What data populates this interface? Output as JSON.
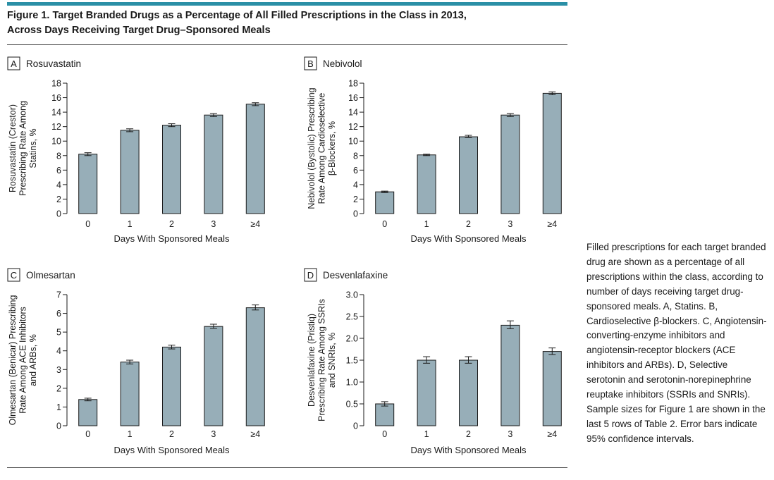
{
  "figure": {
    "title_line1": "Figure 1. Target Branded Drugs as a Percentage of All Filled Prescriptions in the Class in 2013,",
    "title_line2": "Across Days Receiving Target Drug–Sponsored Meals",
    "caption": "Filled prescriptions for each target branded drug are shown as a percentage of all prescriptions within the class, according to number of days receiving target drug-sponsored meals. A, Statins. B, Cardioselective β-blockers. C, Angiotensin-converting-enzyme inhibitors and angiotensin-receptor blockers (ACE inhibitors and ARBs). D, Selective serotonin and serotonin-norepinephrine reuptake inhibitors (SSRIs and SNRIs). Sample sizes for Figure 1 are shown in the last 5 rows of Table 2. Error bars indicate 95% confidence intervals.",
    "colors": {
      "bar_fill": "#97aeb8",
      "bar_stroke": "#1a1a1a",
      "accent_rule": "#2a8fa6"
    }
  },
  "chart_data": [
    {
      "type": "bar",
      "panel_letter": "A",
      "title": "Rosuvastatin",
      "ylabel": [
        "Rosuvastatin (Crestor)",
        "Prescribing Rate Among",
        "Statins, %"
      ],
      "xlabel": "Days With Sponsored Meals",
      "categories": [
        "0",
        "1",
        "2",
        "3",
        "≥4"
      ],
      "values": [
        8.2,
        11.5,
        12.2,
        13.6,
        15.1
      ],
      "ci_low": [
        8.0,
        11.3,
        12.0,
        13.4,
        14.9
      ],
      "ci_high": [
        8.4,
        11.7,
        12.4,
        13.8,
        15.3
      ],
      "ylim": [
        0,
        18
      ],
      "yticks": [
        0,
        2,
        4,
        6,
        8,
        10,
        12,
        14,
        16,
        18
      ],
      "ytick_labels": [
        "0",
        "2",
        "4",
        "6",
        "8",
        "10",
        "12",
        "14",
        "16",
        "18"
      ]
    },
    {
      "type": "bar",
      "panel_letter": "B",
      "title": "Nebivolol",
      "ylabel": [
        "Nebivolol (Bystolic) Prescribing",
        "Rate Among Cardioselective",
        "β-Blockers, %"
      ],
      "xlabel": "Days With Sponsored Meals",
      "categories": [
        "0",
        "1",
        "2",
        "3",
        "≥4"
      ],
      "values": [
        3.0,
        8.1,
        10.6,
        13.6,
        16.6
      ],
      "ci_low": [
        2.9,
        8.0,
        10.5,
        13.4,
        16.4
      ],
      "ci_high": [
        3.1,
        8.2,
        10.8,
        13.8,
        16.8
      ],
      "ylim": [
        0,
        18
      ],
      "yticks": [
        0,
        2,
        4,
        6,
        8,
        10,
        12,
        14,
        16,
        18
      ],
      "ytick_labels": [
        "0",
        "2",
        "4",
        "6",
        "8",
        "10",
        "12",
        "14",
        "16",
        "18"
      ]
    },
    {
      "type": "bar",
      "panel_letter": "C",
      "title": "Olmesartan",
      "ylabel": [
        "Olmesartan (Benicar) Prescribing",
        "Rate Among ACE Inhibitors",
        "and ARBs, %"
      ],
      "xlabel": "Days With Sponsored Meals",
      "categories": [
        "0",
        "1",
        "2",
        "3",
        "≥4"
      ],
      "values": [
        1.4,
        3.4,
        4.2,
        5.3,
        6.3
      ],
      "ci_low": [
        1.33,
        3.3,
        4.1,
        5.2,
        6.18
      ],
      "ci_high": [
        1.47,
        3.5,
        4.3,
        5.42,
        6.45
      ],
      "ylim": [
        0,
        7
      ],
      "yticks": [
        0,
        1,
        2,
        3,
        4,
        5,
        6,
        7
      ],
      "ytick_labels": [
        "0",
        "1",
        "2",
        "3",
        "4",
        "5",
        "6",
        "7"
      ]
    },
    {
      "type": "bar",
      "panel_letter": "D",
      "title": "Desvenlafaxine",
      "ylabel": [
        "Desvenlafaxine (Pristiq)",
        "Prescribing Rate Among SSRIs",
        "and SNRIs, %"
      ],
      "xlabel": "Days With Sponsored Meals",
      "categories": [
        "0",
        "1",
        "2",
        "3",
        "≥4"
      ],
      "values": [
        0.5,
        1.5,
        1.5,
        2.3,
        1.7
      ],
      "ci_low": [
        0.45,
        1.43,
        1.43,
        2.22,
        1.63
      ],
      "ci_high": [
        0.55,
        1.58,
        1.58,
        2.4,
        1.78
      ],
      "ylim": [
        0,
        3.0
      ],
      "yticks": [
        0,
        0.5,
        1.0,
        1.5,
        2.0,
        2.5,
        3.0
      ],
      "ytick_labels": [
        "0",
        "0.5",
        "1.0",
        "1.5",
        "2.0",
        "2.5",
        "3.0"
      ]
    }
  ]
}
